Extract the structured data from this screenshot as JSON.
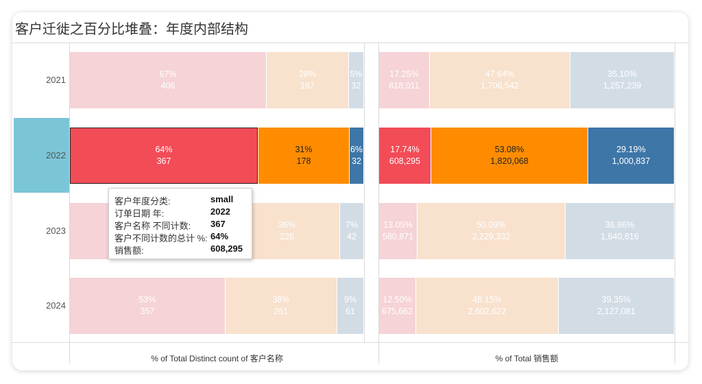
{
  "title": "客户迁徙之百分比堆叠：年度内部结构",
  "colors": {
    "small": "#f24c57",
    "medium": "#ff8c00",
    "large": "#3e76a8",
    "small_faded": "#f5d3d6",
    "medium_faded": "#f8e1cd",
    "large_faded": "#d2dce5",
    "highlight": "#7ac6d6"
  },
  "chart_data": [
    {
      "type": "bar",
      "stacked": "percent",
      "orientation": "horizontal",
      "categories": [
        "2021",
        "2022",
        "2023",
        "2024"
      ],
      "xlabel": "% of Total Distinct count of 客户名称",
      "series": [
        {
          "key": "small",
          "pct_labels": [
            "67%",
            "64%",
            "",
            "53%"
          ],
          "values": [
            406,
            367,
            null,
            357
          ],
          "value_labels": [
            "406",
            "367",
            "",
            "357"
          ],
          "pct": [
            0.67,
            0.64,
            0.56,
            0.53
          ]
        },
        {
          "key": "medium",
          "pct_labels": [
            "28%",
            "31%",
            "36%",
            "38%"
          ],
          "values": [
            167,
            178,
            226,
            261
          ],
          "value_labels": [
            "167",
            "178",
            "226",
            "261"
          ],
          "pct": [
            0.28,
            0.31,
            0.36,
            0.38
          ]
        },
        {
          "key": "large",
          "pct_labels": [
            "5%",
            "6%",
            "7%",
            "9%"
          ],
          "values": [
            32,
            32,
            42,
            61
          ],
          "value_labels": [
            "32",
            "32",
            "42",
            "61"
          ],
          "pct": [
            0.05,
            0.06,
            0.07,
            0.09
          ]
        }
      ]
    },
    {
      "type": "bar",
      "stacked": "percent",
      "orientation": "horizontal",
      "categories": [
        "2021",
        "2022",
        "2023",
        "2024"
      ],
      "xlabel": "% of Total 销售额",
      "series": [
        {
          "key": "small",
          "pct_labels": [
            "17.25%",
            "17.74%",
            "13.05%",
            "12.50%"
          ],
          "values": [
            618011,
            608295,
            580871,
            675662
          ],
          "value_labels": [
            "618,011",
            "608,295",
            "580,871",
            "675,662"
          ],
          "pct": [
            0.1725,
            0.1774,
            0.1305,
            0.125
          ]
        },
        {
          "key": "medium",
          "pct_labels": [
            "47.64%",
            "53.08%",
            "50.09%",
            "48.15%"
          ],
          "values": [
            1706542,
            1820068,
            2229332,
            2602622
          ],
          "value_labels": [
            "1,706,542",
            "1,820,068",
            "2,229,332",
            "2,602,622"
          ],
          "pct": [
            0.4764,
            0.5308,
            0.5009,
            0.4815
          ]
        },
        {
          "key": "large",
          "pct_labels": [
            "35.10%",
            "29.19%",
            "36.86%",
            "39.35%"
          ],
          "values": [
            1257239,
            1000837,
            1640816,
            2127081
          ],
          "value_labels": [
            "1,257,239",
            "1,000,837",
            "1,640,816",
            "2,127,081"
          ],
          "pct": [
            0.351,
            0.2919,
            0.3686,
            0.3935
          ]
        }
      ]
    }
  ],
  "selected": {
    "category_index": 1,
    "chart_index": 0,
    "series_index": 0
  },
  "tooltip": {
    "rows": [
      {
        "key": "客户年度分类:",
        "value": "small"
      },
      {
        "key": "订单日期 年:",
        "value": "2022"
      },
      {
        "key": "客户名称 不同计数:",
        "value": "367"
      },
      {
        "key": "客户不同计数的总计 %:",
        "value": "64%"
      },
      {
        "key": "销售额:",
        "value": "608,295"
      }
    ]
  }
}
